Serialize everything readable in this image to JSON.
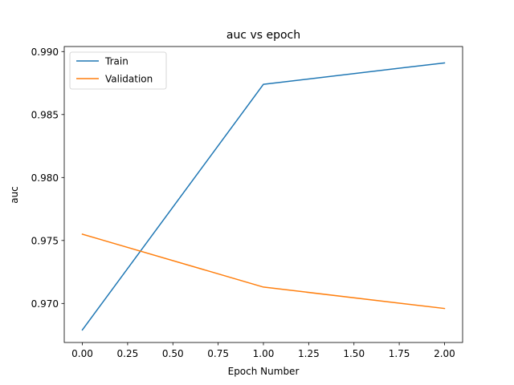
{
  "chart_data": {
    "type": "line",
    "title": "auc vs epoch",
    "xlabel": "Epoch Number",
    "ylabel": "auc",
    "xlim": [
      -0.1,
      2.1
    ],
    "ylim": [
      0.9669,
      0.9904
    ],
    "x_ticks": [
      0.0,
      0.25,
      0.5,
      0.75,
      1.0,
      1.25,
      1.5,
      1.75,
      2.0
    ],
    "x_tick_labels": [
      "0.00",
      "0.25",
      "0.50",
      "0.75",
      "1.00",
      "1.25",
      "1.50",
      "1.75",
      "2.00"
    ],
    "y_ticks": [
      0.97,
      0.975,
      0.98,
      0.985,
      0.99
    ],
    "y_tick_labels": [
      "0.970",
      "0.975",
      "0.980",
      "0.985",
      "0.990"
    ],
    "grid": false,
    "legend_position": "top-left",
    "x": [
      0,
      1,
      2
    ],
    "series": [
      {
        "name": "Train",
        "color": "#1f77b4",
        "values": [
          0.9679,
          0.9874,
          0.9891
        ]
      },
      {
        "name": "Validation",
        "color": "#ff7f0e",
        "values": [
          0.9755,
          0.9713,
          0.9696
        ]
      }
    ]
  }
}
